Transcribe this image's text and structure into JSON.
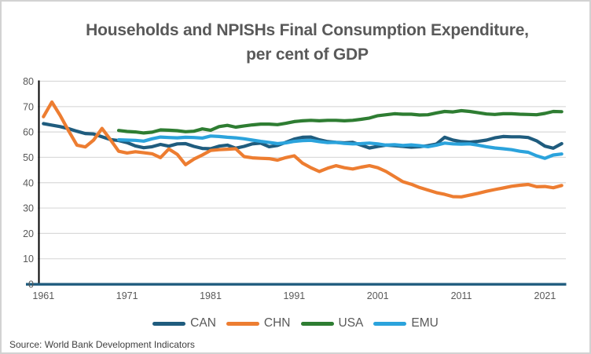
{
  "window": {
    "background": "#ffffff",
    "border_color": "#d2d2d2"
  },
  "title": {
    "line1": "Households and NPISHs Final Consumption Expenditure,",
    "line2": "per cent of GDP",
    "color": "#595959"
  },
  "source_note": "Source: World Bank Development Indicators",
  "colors": {
    "gridline": "#d9d9d9",
    "y_axis_line": "#000000",
    "x_axis_line": "#1f5c7e",
    "tick_text": "#595959"
  },
  "chart_data": {
    "type": "line",
    "title": "Households and NPISHs Final Consumption Expenditure, per cent of GDP",
    "xlabel": "",
    "ylabel": "",
    "ylim": [
      0,
      80
    ],
    "y_ticks": [
      0,
      10,
      20,
      30,
      40,
      50,
      60,
      70,
      80
    ],
    "x_tick_labels": [
      "1961",
      "1971",
      "1981",
      "1991",
      "2001",
      "2011",
      "2021"
    ],
    "x_range": [
      1961,
      2023
    ],
    "grid": true,
    "legend_position": "bottom",
    "series": [
      {
        "name": "CAN",
        "color": "#1f5c7e",
        "start_year": 1961,
        "values": [
          63.3,
          62.7,
          62.1,
          61.3,
          60.3,
          59.4,
          59.2,
          58.1,
          57.0,
          56.6,
          55.8,
          54.5,
          53.8,
          54.2,
          55.1,
          54.4,
          55.3,
          55.4,
          54.3,
          53.5,
          53.4,
          54.4,
          54.8,
          53.6,
          54.3,
          55.3,
          55.6,
          54.2,
          54.7,
          55.9,
          57.2,
          57.9,
          58.0,
          56.9,
          56.2,
          55.9,
          55.7,
          55.9,
          54.8,
          53.7,
          54.3,
          54.8,
          54.6,
          54.3,
          54.0,
          54.2,
          54.6,
          55.2,
          57.9,
          56.8,
          56.2,
          56.0,
          56.3,
          56.8,
          57.7,
          58.2,
          58.1,
          58.1,
          57.8,
          56.5,
          54.4,
          53.6,
          55.4
        ]
      },
      {
        "name": "CHN",
        "color": "#ed7d31",
        "start_year": 1961,
        "values": [
          66.0,
          71.8,
          66.5,
          60.5,
          54.8,
          54.1,
          56.8,
          61.4,
          57.0,
          52.4,
          51.7,
          52.2,
          51.8,
          51.4,
          49.9,
          53.3,
          51.2,
          47.1,
          49.3,
          50.9,
          52.7,
          53.0,
          53.2,
          53.4,
          50.3,
          49.8,
          49.6,
          49.5,
          48.9,
          49.9,
          50.6,
          47.7,
          45.9,
          44.4,
          45.7,
          46.7,
          45.9,
          45.4,
          46.1,
          46.7,
          45.9,
          44.4,
          42.4,
          40.4,
          39.4,
          38.1,
          37.1,
          36.1,
          35.4,
          34.5,
          34.4,
          35.1,
          35.8,
          36.6,
          37.3,
          37.9,
          38.6,
          39.0,
          39.3,
          38.4,
          38.5,
          38.0,
          38.9
        ]
      },
      {
        "name": "USA",
        "color": "#2e7d32",
        "start_year": 1970,
        "values": [
          60.6,
          60.2,
          60.0,
          59.6,
          59.9,
          60.8,
          60.7,
          60.5,
          60.1,
          60.3,
          61.2,
          60.7,
          62.1,
          62.6,
          61.9,
          62.4,
          62.8,
          63.1,
          63.1,
          62.9,
          63.4,
          64.1,
          64.4,
          64.6,
          64.4,
          64.6,
          64.6,
          64.4,
          64.6,
          65.0,
          65.5,
          66.4,
          66.8,
          67.2,
          67.0,
          67.0,
          66.7,
          66.8,
          67.5,
          68.1,
          67.9,
          68.4,
          68.1,
          67.6,
          67.1,
          66.9,
          67.2,
          67.2,
          67.0,
          66.9,
          66.8,
          67.3,
          68.1,
          68.0
        ]
      },
      {
        "name": "EMU",
        "color": "#2ba3dc",
        "start_year": 1970,
        "values": [
          56.9,
          56.8,
          56.7,
          56.4,
          57.3,
          58.0,
          57.8,
          57.7,
          57.9,
          57.8,
          57.6,
          58.4,
          58.2,
          57.9,
          57.7,
          57.3,
          56.8,
          56.3,
          55.9,
          55.4,
          55.7,
          56.3,
          56.6,
          56.7,
          56.2,
          55.8,
          55.9,
          55.5,
          55.3,
          55.4,
          55.6,
          55.3,
          54.8,
          55.0,
          54.7,
          54.9,
          54.6,
          54.2,
          54.8,
          55.6,
          55.3,
          55.2,
          55.3,
          54.8,
          54.2,
          53.7,
          53.4,
          53.0,
          52.4,
          52.0,
          50.6,
          49.6,
          50.9,
          51.3
        ]
      }
    ]
  },
  "legend": {
    "items": [
      {
        "label": "CAN",
        "color": "#1f5c7e"
      },
      {
        "label": "CHN",
        "color": "#ed7d31"
      },
      {
        "label": "USA",
        "color": "#2e7d32"
      },
      {
        "label": "EMU",
        "color": "#2ba3dc"
      }
    ]
  }
}
